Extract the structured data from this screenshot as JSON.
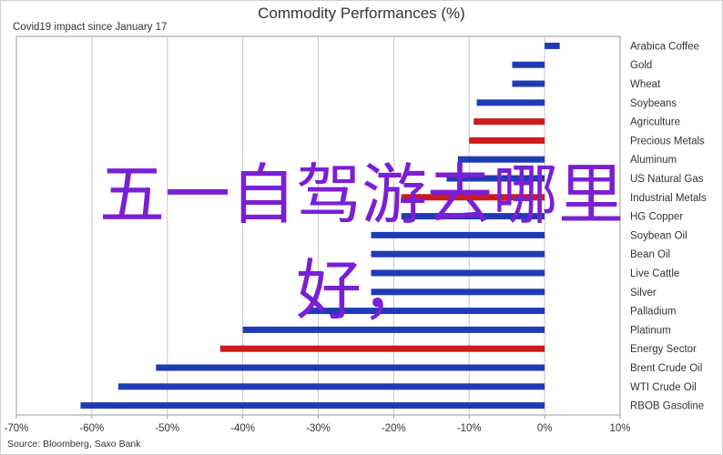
{
  "chart_data": {
    "type": "bar",
    "orientation": "horizontal",
    "title": "Commodity Performances (%)",
    "subtitle": "Covid19 impact since January 17",
    "source": "Source: Bloomberg, Saxo Bank",
    "xlim": [
      -70,
      10
    ],
    "x_ticks": [
      "-70%",
      "-60%",
      "-50%",
      "-40%",
      "-30%",
      "-20%",
      "-10%",
      "0%",
      "10%"
    ],
    "grid": "vertical",
    "categories": [
      "Arabica Coffee",
      "Gold",
      "Wheat",
      "Soybeans",
      "Agriculture",
      "Precious Metals",
      "Aluminum",
      "US Natural Gas",
      "Industrial Metals",
      "HG Copper",
      "Soybean Oil",
      "Bean Oil",
      "Live Cattle",
      "Silver",
      "Palladium",
      "Platinum",
      "Energy Sector",
      "Brent Crude Oil",
      "WTI Crude Oil",
      "RBOB Gasoline"
    ],
    "values": [
      2,
      -4.3,
      -4.3,
      -9,
      -9.4,
      -10,
      -11.5,
      -13,
      -19,
      -19,
      -23,
      -23,
      -23,
      -23,
      -31.5,
      -40,
      -43,
      -51.5,
      -56.5,
      -61.5
    ],
    "bar_colors": [
      "#1f3bb3",
      "#1f3bb3",
      "#1f3bb3",
      "#1f3bb3",
      "#cc1b1b",
      "#cc1b1b",
      "#1f3bb3",
      "#1f3bb3",
      "#cc1b1b",
      "#1f3bb3",
      "#1f3bb3",
      "#1f3bb3",
      "#1f3bb3",
      "#1f3bb3",
      "#1f3bb3",
      "#1f3bb3",
      "#cc1b1b",
      "#1f3bb3",
      "#1f3bb3",
      "#1f3bb3"
    ]
  },
  "overlay": {
    "line1": "五一自驾游去哪里",
    "line2": "好，"
  },
  "colors": {
    "blue": "#1f3bb3",
    "red": "#cc1b1b",
    "grid": "#c8c8c8",
    "overlay": "#7a1fd6"
  }
}
